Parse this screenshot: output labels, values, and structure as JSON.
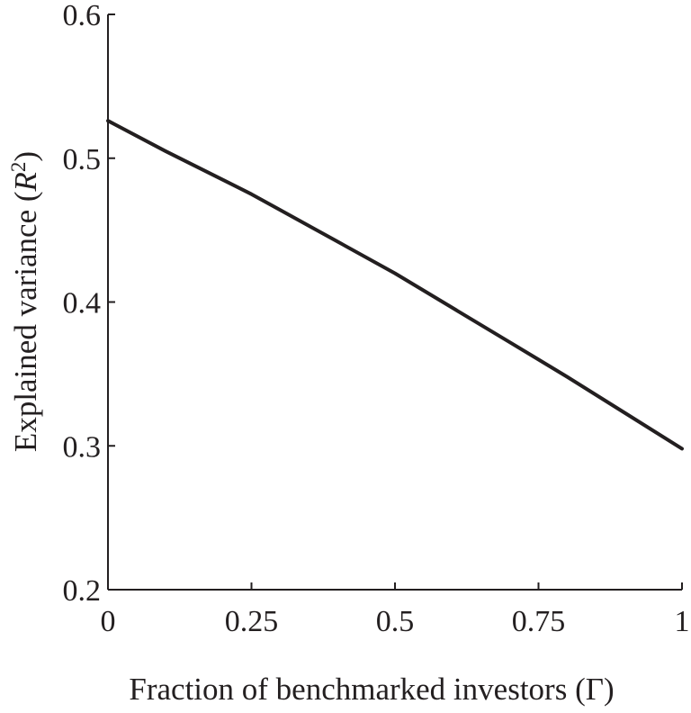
{
  "chart_data": {
    "type": "line",
    "xlabel": "Fraction of benchmarked investors (Γ)",
    "ylabel": {
      "prefix": "Explained variance  (",
      "symbol": "R",
      "superscript": "2",
      "suffix": ")"
    },
    "xlim": [
      0,
      1
    ],
    "ylim": [
      0.2,
      0.6
    ],
    "xticks": [
      0,
      0.25,
      0.5,
      0.75,
      1
    ],
    "xtick_labels": [
      "0",
      "0.25",
      "0.5",
      "0.75",
      "1"
    ],
    "yticks": [
      0.2,
      0.3,
      0.4,
      0.5,
      0.6
    ],
    "ytick_labels": [
      "0.2",
      "0.3",
      "0.4",
      "0.5",
      "0.6"
    ],
    "grid": false,
    "series": [
      {
        "color": "#231f20",
        "x": [
          0,
          0.1,
          0.2,
          0.25,
          0.3,
          0.4,
          0.5,
          0.6,
          0.7,
          0.75,
          0.8,
          0.9,
          1.0
        ],
        "y": [
          0.526,
          0.505,
          0.485,
          0.475,
          0.464,
          0.442,
          0.42,
          0.396,
          0.372,
          0.36,
          0.348,
          0.323,
          0.298
        ]
      }
    ]
  }
}
